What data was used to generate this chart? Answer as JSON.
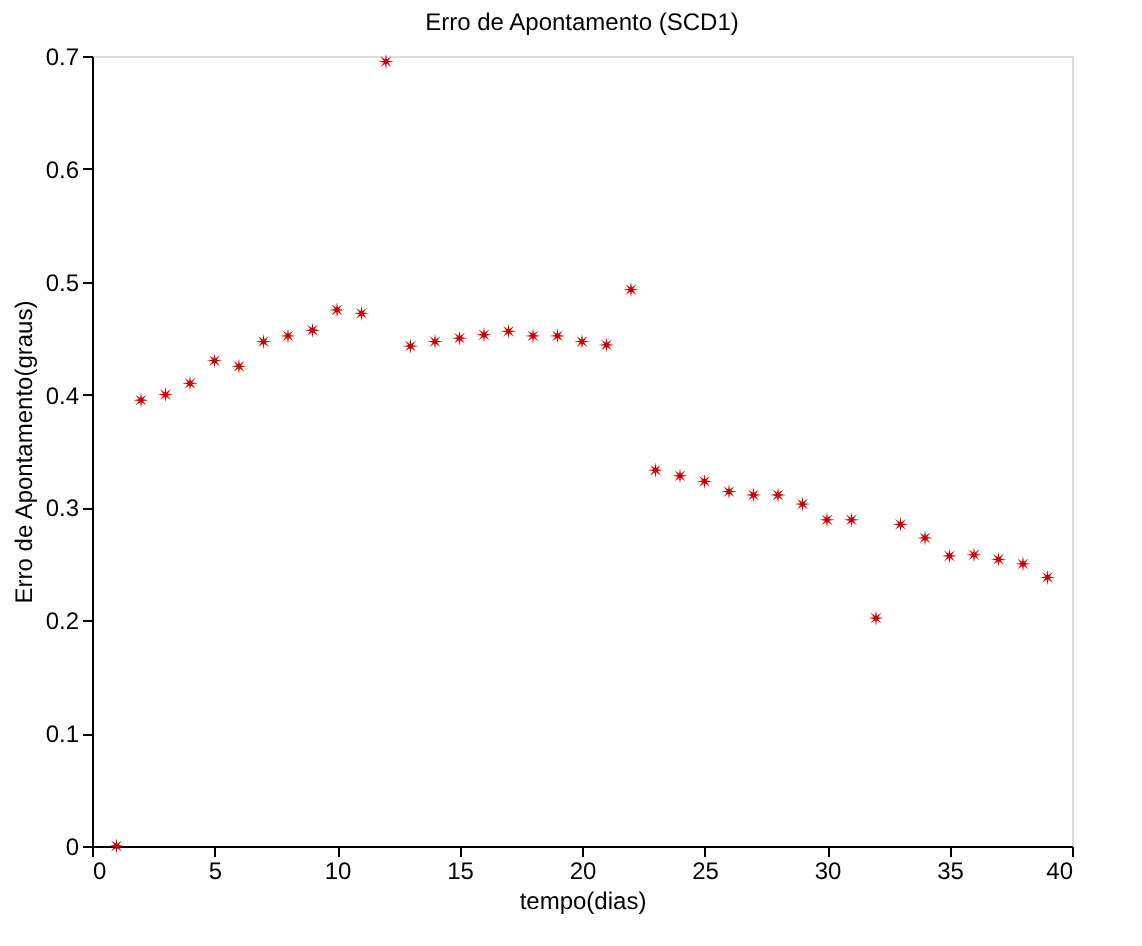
{
  "chart_data": {
    "type": "scatter",
    "title": "Erro de Apontamento (SCD1)",
    "xlabel": "tempo(dias)",
    "ylabel": "Erro de Apontamento(graus)",
    "x": [
      1,
      2,
      3,
      4,
      5,
      6,
      7,
      8,
      9,
      10,
      11,
      12,
      13,
      14,
      15,
      16,
      17,
      18,
      19,
      20,
      21,
      22,
      23,
      24,
      25,
      26,
      27,
      28,
      29,
      30,
      31,
      32,
      33,
      34,
      35,
      36,
      37,
      38,
      39
    ],
    "series": [
      {
        "color": "#cc0000",
        "values": [
          0,
          0.395,
          0.4,
          0.41,
          0.43,
          0.425,
          0.447,
          0.452,
          0.457,
          0.475,
          0.472,
          0.695,
          0.443,
          0.447,
          0.45,
          0.453,
          0.456,
          0.452,
          0.452,
          0.447,
          0.444,
          0.493,
          0.333,
          0.328,
          0.323,
          0.314,
          0.311,
          0.311,
          0.303,
          0.289,
          0.289,
          0.202,
          0.285,
          0.273,
          0.257,
          0.258,
          0.254,
          0.25,
          0.238
        ]
      }
    ],
    "xlim": [
      0,
      40
    ],
    "xticks": [
      0,
      5,
      10,
      15,
      20,
      25,
      30,
      35,
      40
    ],
    "ylim": [
      0,
      0.7
    ],
    "yticks": [
      0,
      0.1,
      0.2,
      0.3,
      0.4,
      0.5,
      0.6,
      0.7
    ],
    "marker": "star",
    "grid": false
  }
}
